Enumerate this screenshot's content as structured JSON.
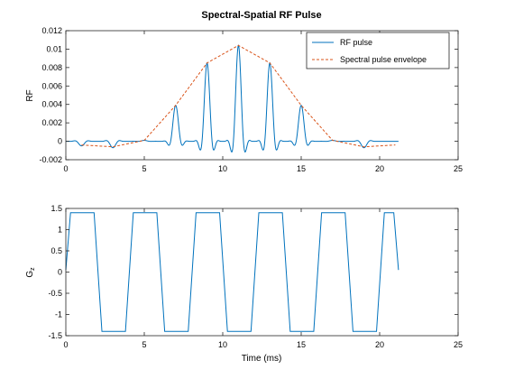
{
  "chart_data": [
    {
      "type": "line",
      "title": "Spectral-Spatial RF Pulse",
      "xlabel": "",
      "ylabel": "RF",
      "xlim": [
        0,
        25
      ],
      "ylim": [
        -0.002,
        0.012
      ],
      "xticks": [
        0,
        5,
        10,
        15,
        20,
        25
      ],
      "xtick_labels": [
        "0",
        "5",
        "10",
        "15",
        "20",
        "25"
      ],
      "yticks": [
        -0.002,
        0,
        0.002,
        0.004,
        0.006,
        0.008,
        0.01,
        0.012
      ],
      "ytick_labels": [
        "-0.002",
        "0",
        "0.002",
        "0.004",
        "0.006",
        "0.008",
        "0.01",
        "0.012"
      ],
      "grid": false,
      "legend_position": "top-right",
      "series": [
        {
          "name": "RF pulse",
          "color": "#0072BD",
          "style": "solid",
          "lobes": [
            {
              "center": 1.0,
              "peak": -0.0005
            },
            {
              "center": 3.0,
              "peak": -0.0007
            },
            {
              "center": 5.0,
              "peak": 0.0001
            },
            {
              "center": 7.0,
              "peak": 0.0039
            },
            {
              "center": 9.0,
              "peak": 0.0085
            },
            {
              "center": 11.0,
              "peak": 0.0104
            },
            {
              "center": 13.0,
              "peak": 0.0085
            },
            {
              "center": 15.0,
              "peak": 0.0039
            },
            {
              "center": 17.0,
              "peak": 0.0001
            },
            {
              "center": 19.0,
              "peak": -0.0007
            }
          ],
          "x_end": 21.2
        },
        {
          "name": "Spectral pulse envelope",
          "color": "#D95319",
          "style": "dashed",
          "x": [
            1,
            3,
            5,
            7,
            9,
            11,
            13,
            15,
            17,
            19,
            21
          ],
          "y": [
            -0.0004,
            -0.0006,
            0.0001,
            0.0039,
            0.0085,
            0.0104,
            0.0085,
            0.0039,
            0.0001,
            -0.0006,
            -0.0004
          ]
        }
      ]
    },
    {
      "type": "line",
      "title": "",
      "xlabel": "Time (ms)",
      "ylabel": "G",
      "ylabel_sub": "z",
      "xlim": [
        0,
        25
      ],
      "ylim": [
        -1.5,
        1.5
      ],
      "xticks": [
        0,
        5,
        10,
        15,
        20,
        25
      ],
      "xtick_labels": [
        "0",
        "5",
        "10",
        "15",
        "20",
        "25"
      ],
      "yticks": [
        -1.5,
        -1,
        -0.5,
        0,
        0.5,
        1,
        1.5
      ],
      "ytick_labels": [
        "-1.5",
        "-1",
        "-0.5",
        "0",
        "0.5",
        "1",
        "1.5"
      ],
      "grid": false,
      "series": [
        {
          "color": "#0072BD",
          "x": [
            0,
            0.3,
            1.8,
            2.3,
            3.8,
            4.3,
            5.8,
            6.3,
            7.8,
            8.3,
            9.8,
            10.3,
            11.8,
            12.3,
            13.8,
            14.3,
            15.8,
            16.3,
            17.8,
            18.3,
            19.8,
            20.3,
            20.5,
            20.9,
            21.2
          ],
          "y": [
            0.05,
            1.4,
            1.4,
            -1.4,
            -1.4,
            1.4,
            1.4,
            -1.4,
            -1.4,
            1.4,
            1.4,
            -1.4,
            -1.4,
            1.4,
            1.4,
            -1.4,
            -1.4,
            1.4,
            1.4,
            -1.4,
            -1.4,
            1.4,
            1.4,
            1.4,
            0.05
          ]
        }
      ]
    }
  ]
}
